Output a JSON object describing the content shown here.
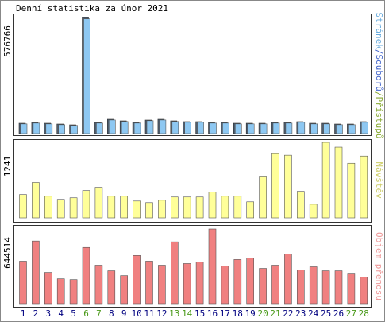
{
  "chart_data": [
    {
      "type": "bar",
      "title": "Denní statistika za únor 2021",
      "categories": [
        "1",
        "2",
        "3",
        "4",
        "5",
        "6",
        "7",
        "8",
        "9",
        "10",
        "11",
        "12",
        "13",
        "14",
        "15",
        "16",
        "17",
        "18",
        "19",
        "20",
        "21",
        "22",
        "23",
        "24",
        "25",
        "26",
        "27",
        "28"
      ],
      "category_colors": [
        "#000080",
        "#000080",
        "#000080",
        "#000080",
        "#000080",
        "#4a9a1a",
        "#4a9a1a",
        "#000080",
        "#000080",
        "#000080",
        "#000080",
        "#000080",
        "#4a9a1a",
        "#4a9a1a",
        "#000080",
        "#000080",
        "#000080",
        "#000080",
        "#000080",
        "#4a9a1a",
        "#4a9a1a",
        "#000080",
        "#000080",
        "#000080",
        "#000080",
        "#000080",
        "#4a9a1a",
        "#4a9a1a"
      ],
      "legend": [
        {
          "text": "Stránek",
          "color": "#66aadd"
        },
        {
          "text": "/Souborů",
          "color": "#4466cc"
        },
        {
          "text": "/Přístupů",
          "color": "#88aa33"
        }
      ],
      "ylim": [
        0,
        576766
      ],
      "yticks": [
        576766
      ],
      "series": [
        {
          "color": "#4d5e70",
          "values": [
            51350,
            55300,
            51350,
            47400,
            43450,
            576766,
            55300,
            71100,
            63200,
            55300,
            67150,
            71100,
            63200,
            59250,
            59250,
            55300,
            55300,
            51350,
            51350,
            51350,
            55300,
            55300,
            59250,
            51350,
            51350,
            47400,
            47400,
            59250
          ]
        },
        {
          "color": "#8ec8f2",
          "values": [
            48000,
            52000,
            48000,
            44000,
            40500,
            570000,
            52000,
            67500,
            60000,
            52000,
            64000,
            67500,
            60000,
            56000,
            56000,
            52000,
            52000,
            48000,
            48000,
            48000,
            52000,
            52000,
            56000,
            48000,
            48000,
            44000,
            44000,
            56000
          ]
        }
      ]
    },
    {
      "type": "bar",
      "legend": [
        {
          "text": "Návštěv",
          "color": "#cccc66"
        }
      ],
      "ylim": [
        0,
        1241
      ],
      "yticks": [
        1241
      ],
      "series": [
        {
          "color": "#ffff99",
          "values": [
            383,
            581,
            356,
            304,
            330,
            449,
            502,
            356,
            356,
            277,
            251,
            290,
            343,
            343,
            343,
            422,
            356,
            356,
            264,
            686,
            1056,
            1030,
            436,
            224,
            1241,
            1162,
            898,
            1016
          ]
        }
      ]
    },
    {
      "type": "bar",
      "legend": [
        {
          "text": "Objem přenosu",
          "color": "#ee9999"
        }
      ],
      "ylim": [
        0,
        644514
      ],
      "yticks": [
        644514
      ],
      "series": [
        {
          "color": "#f08080",
          "values": [
            367000,
            540500,
            270300,
            214800,
            207900,
            485100,
            332600,
            284100,
            242500,
            415800,
            367300,
            332600,
            533600,
            346500,
            360400,
            644514,
            325700,
            381200,
            395000,
            304900,
            332600,
            429700,
            291100,
            318800,
            284100,
            284100,
            263300,
            228700
          ]
        }
      ]
    }
  ]
}
